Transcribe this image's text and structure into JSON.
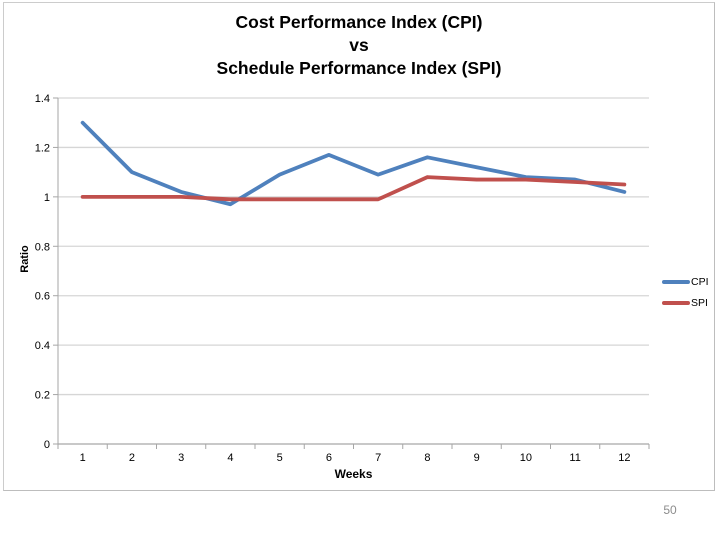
{
  "page": {
    "number": "50"
  },
  "chart_data": {
    "type": "line",
    "title_lines": [
      "Cost Performance Index (CPI)",
      "vs",
      "Schedule Performance Index (SPI)"
    ],
    "xlabel": "Weeks",
    "ylabel": "Ratio",
    "categories": [
      "1",
      "2",
      "3",
      "4",
      "5",
      "6",
      "7",
      "8",
      "9",
      "10",
      "11",
      "12"
    ],
    "ylim": [
      0,
      1.4
    ],
    "ytick_labels": [
      "0",
      "0.2",
      "0.4",
      "0.6",
      "0.8",
      "1",
      "1.2",
      "1.4"
    ],
    "grid": true,
    "legend_position": "right",
    "series": [
      {
        "name": "CPI",
        "color": "#4F81BD",
        "values": [
          1.3,
          1.1,
          1.02,
          0.97,
          1.09,
          1.17,
          1.09,
          1.16,
          1.12,
          1.08,
          1.07,
          1.02
        ]
      },
      {
        "name": "SPI",
        "color": "#C0504D",
        "values": [
          1.0,
          1.0,
          1.0,
          0.99,
          0.99,
          0.99,
          0.99,
          1.08,
          1.07,
          1.07,
          1.06,
          1.05
        ]
      }
    ],
    "colors": {
      "gridline": "#D6D6D6",
      "axis": "#A6A6A6",
      "text": "#000000"
    }
  }
}
